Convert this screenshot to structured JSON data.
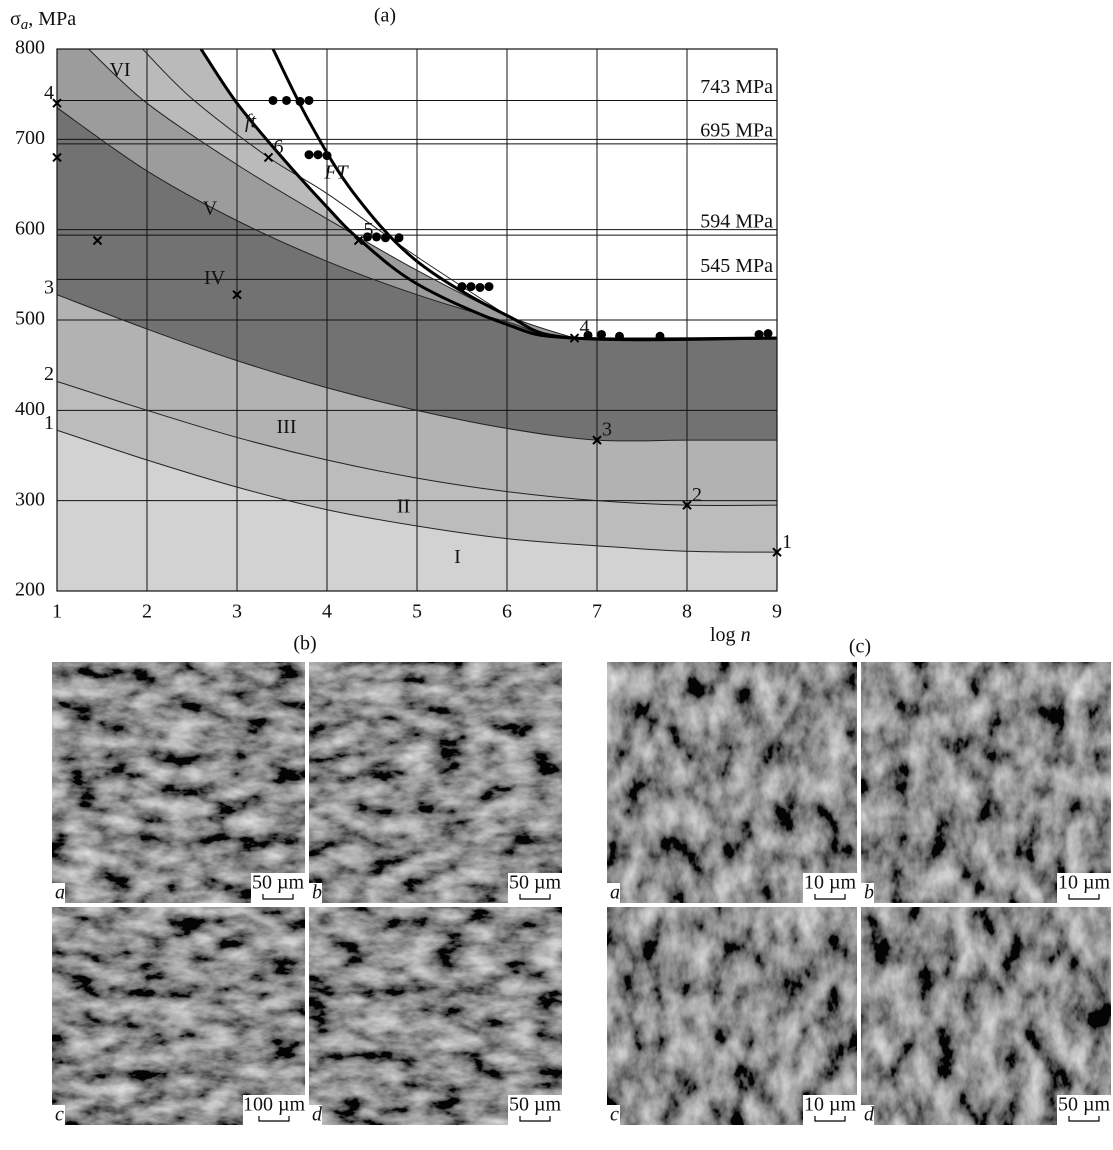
{
  "chart_data": {
    "type": "line",
    "title": "(a)",
    "ylabel_parts": [
      "σ",
      "a",
      ", MPa"
    ],
    "xlabel_parts": [
      "log ",
      "n"
    ],
    "xlim": [
      1,
      9
    ],
    "xticks": [
      1,
      2,
      3,
      4,
      5,
      6,
      7,
      8,
      9
    ],
    "ylim": [
      200,
      800
    ],
    "yticks": [
      200,
      300,
      400,
      500,
      600,
      700,
      800
    ],
    "grid": true,
    "series": [
      {
        "name": "1",
        "color": "#222222",
        "fill": "#d2d2d2",
        "line_width": 1,
        "x": [
          1,
          2,
          3,
          4,
          5,
          6,
          7,
          8,
          9
        ],
        "values": [
          378,
          345,
          315,
          290,
          272,
          258,
          250,
          244,
          243
        ]
      },
      {
        "name": "2",
        "color": "#222222",
        "fill": "#bcbcbc",
        "line_width": 1,
        "x": [
          1,
          2,
          3,
          4,
          5,
          6,
          7,
          8,
          9
        ],
        "values": [
          432,
          400,
          370,
          345,
          325,
          310,
          300,
          295,
          295
        ]
      },
      {
        "name": "3",
        "color": "#222222",
        "fill": "#b2b2b2",
        "line_width": 1,
        "x": [
          1,
          2,
          3,
          4,
          5,
          6,
          7,
          8,
          9
        ],
        "values": [
          528,
          490,
          455,
          425,
          400,
          380,
          367,
          367,
          367
        ]
      },
      {
        "name": null,
        "color": "#222222",
        "fill": "#727272",
        "line_width": 1,
        "x": [
          1,
          2,
          3,
          4,
          5,
          6,
          6.75,
          9
        ],
        "values": [
          735,
          665,
          610,
          565,
          528,
          498,
          480,
          480
        ]
      },
      {
        "name": null,
        "color": "#222222",
        "fill": "#9c9c9c",
        "line_width": 1,
        "x": [
          1.35,
          2,
          3,
          4,
          5,
          6,
          6.75
        ],
        "values": [
          800,
          740,
          672,
          612,
          555,
          505,
          480
        ]
      },
      {
        "name": null,
        "color": "#222222",
        "fill": null,
        "line_width": 1,
        "x": [
          1.95,
          2.5,
          3.35,
          4,
          5,
          6
        ],
        "values": [
          800,
          745,
          680,
          640,
          570,
          505
        ]
      },
      {
        "name": null,
        "color": "#000000",
        "fill": "#bababa",
        "line_width": 3,
        "x": [
          2.6,
          3,
          3.5,
          4,
          4.35,
          5,
          6,
          6.75,
          9
        ],
        "values": [
          800,
          740,
          680,
          625,
          590,
          540,
          495,
          480,
          480
        ]
      },
      {
        "name": null,
        "color": "#000000",
        "fill": null,
        "line_width": 3,
        "x": [
          3.4,
          3.8,
          4.3,
          5,
          6,
          6.75,
          9
        ],
        "values": [
          800,
          720,
          640,
          565,
          505,
          480,
          480
        ]
      }
    ],
    "hlines": [
      {
        "value": 743,
        "label": "743 MPa"
      },
      {
        "value": 695,
        "label": "695 MPa"
      },
      {
        "value": 594,
        "label": "594 MPa"
      },
      {
        "value": 545,
        "label": "545 MPa"
      }
    ],
    "points": {
      "color": "#000000",
      "x": [
        3.4,
        3.55,
        3.7,
        3.8,
        3.8,
        3.9,
        4.0,
        4.45,
        4.55,
        4.65,
        4.8,
        5.5,
        5.6,
        5.7,
        5.8,
        6.9,
        7.05,
        7.25,
        7.7,
        8.8,
        8.9
      ],
      "values": [
        743,
        743,
        742,
        743,
        683,
        683,
        682,
        592,
        592,
        591,
        591,
        537,
        537,
        536,
        537,
        483,
        484,
        482,
        482,
        484,
        485
      ]
    },
    "crosses": {
      "x": [
        1,
        1,
        1.45,
        3,
        3.35,
        4.35,
        6.75,
        7,
        8,
        9
      ],
      "values": [
        740,
        680,
        588,
        528,
        680,
        588,
        480,
        367,
        295,
        243
      ],
      "labels": [
        "4",
        null,
        null,
        null,
        "6",
        "5",
        "4",
        "3",
        "2",
        "1"
      ]
    },
    "annotations": [
      {
        "text": "ft",
        "x": 3.15,
        "y": 718,
        "italic": true
      },
      {
        "text": "FT",
        "x": 4.1,
        "y": 662,
        "italic": true
      },
      {
        "text": "VI",
        "x": 1.7,
        "y": 775,
        "italic": false
      },
      {
        "text": "V",
        "x": 2.7,
        "y": 622,
        "italic": false
      },
      {
        "text": "IV",
        "x": 2.75,
        "y": 545,
        "italic": false
      },
      {
        "text": "III",
        "x": 3.55,
        "y": 380,
        "italic": false
      },
      {
        "text": "II",
        "x": 4.85,
        "y": 292,
        "italic": false
      },
      {
        "text": "I",
        "x": 5.45,
        "y": 236,
        "italic": false
      }
    ]
  },
  "panels": [
    {
      "label": "(b)",
      "images": [
        {
          "letter": "a",
          "scale": "50 µm"
        },
        {
          "letter": "b",
          "scale": "50 µm"
        },
        {
          "letter": "c",
          "scale": "100 µm"
        },
        {
          "letter": "d",
          "scale": "50 µm"
        }
      ]
    },
    {
      "label": "(c)",
      "images": [
        {
          "letter": "a",
          "scale": "10 µm"
        },
        {
          "letter": "b",
          "scale": "10 µm"
        },
        {
          "letter": "c",
          "scale": "10 µm"
        },
        {
          "letter": "d",
          "scale": "50 µm"
        }
      ]
    }
  ]
}
